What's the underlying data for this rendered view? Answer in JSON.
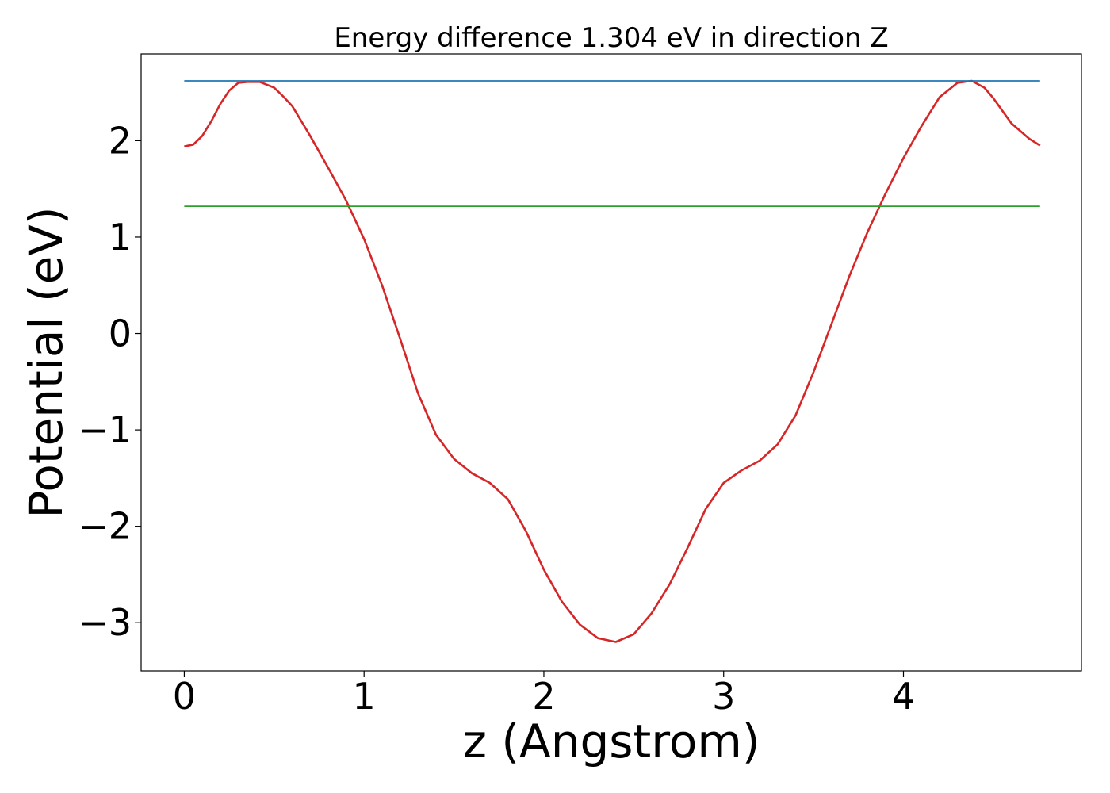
{
  "chart_data": {
    "type": "line",
    "title": "Energy difference 1.304 eV in direction Z",
    "xlabel": "z (Angstrom)",
    "ylabel": "Potential (eV)",
    "xlim": [
      -0.24,
      4.99
    ],
    "ylim": [
      -3.5,
      2.9
    ],
    "xticks": [
      0,
      1,
      2,
      3,
      4
    ],
    "xtick_labels": [
      "0",
      "1",
      "2",
      "3",
      "4"
    ],
    "yticks": [
      -3,
      -2,
      -1,
      0,
      1,
      2
    ],
    "ytick_labels": [
      "−3",
      "−2",
      "−1",
      "0",
      "1",
      "2"
    ],
    "grid": false,
    "series": [
      {
        "color": "#d62728",
        "x": [
          0.0,
          0.05,
          0.1,
          0.15,
          0.2,
          0.25,
          0.3,
          0.35,
          0.42,
          0.5,
          0.55,
          0.6,
          0.7,
          0.8,
          0.9,
          1.0,
          1.1,
          1.2,
          1.3,
          1.4,
          1.5,
          1.6,
          1.7,
          1.8,
          1.9,
          2.0,
          2.1,
          2.2,
          2.3,
          2.4,
          2.5,
          2.6,
          2.7,
          2.8,
          2.9,
          3.0,
          3.1,
          3.2,
          3.3,
          3.4,
          3.5,
          3.6,
          3.7,
          3.8,
          3.9,
          4.0,
          4.1,
          4.2,
          4.3,
          4.38,
          4.45,
          4.5,
          4.6,
          4.7,
          4.76
        ],
        "y": [
          1.94,
          1.96,
          2.05,
          2.2,
          2.38,
          2.52,
          2.6,
          2.61,
          2.61,
          2.55,
          2.46,
          2.36,
          2.05,
          1.72,
          1.38,
          0.98,
          0.5,
          -0.05,
          -0.62,
          -1.05,
          -1.3,
          -1.45,
          -1.55,
          -1.72,
          -2.05,
          -2.45,
          -2.78,
          -3.02,
          -3.16,
          -3.2,
          -3.12,
          -2.9,
          -2.6,
          -2.22,
          -1.82,
          -1.55,
          -1.42,
          -1.32,
          -1.15,
          -0.85,
          -0.4,
          0.1,
          0.6,
          1.05,
          1.45,
          1.82,
          2.15,
          2.45,
          2.6,
          2.62,
          2.55,
          2.44,
          2.18,
          2.02,
          1.95
        ]
      },
      {
        "color": "#1f77b4",
        "x": [
          0.0,
          4.76
        ],
        "y": [
          2.62,
          2.62
        ]
      },
      {
        "color": "#2ca02c",
        "x": [
          0.0,
          4.76
        ],
        "y": [
          1.32,
          1.32
        ]
      }
    ]
  }
}
